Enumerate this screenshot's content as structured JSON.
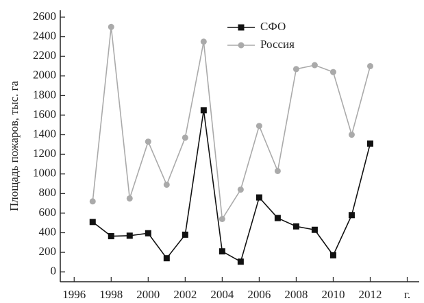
{
  "chart_data": {
    "type": "line",
    "y_label": "Площадь пожаров, тыс. га",
    "x": [
      1997,
      1998,
      1999,
      2000,
      2001,
      2002,
      2003,
      2004,
      2005,
      2006,
      2007,
      2008,
      2009,
      2010,
      2011,
      2012
    ],
    "series": [
      {
        "name": "СФО",
        "color": "#111111",
        "marker": "square",
        "values": [
          510,
          365,
          370,
          395,
          140,
          380,
          1650,
          210,
          105,
          760,
          550,
          465,
          430,
          170,
          580,
          1310
        ]
      },
      {
        "name": "Россия",
        "color": "#aaaaaa",
        "marker": "circle",
        "values": [
          720,
          2500,
          750,
          1330,
          890,
          1370,
          2350,
          540,
          840,
          1490,
          1030,
          2070,
          2110,
          2040,
          1400,
          2100
        ]
      }
    ],
    "xlim": [
      1995.25,
      2014.5
    ],
    "xticks": [
      1996,
      1998,
      2000,
      2002,
      2004,
      2006,
      2008,
      2010,
      2012,
      {
        "value": 2014,
        "label": "г."
      }
    ],
    "ylim": [
      -100,
      2670
    ],
    "yticks": [
      0,
      200,
      400,
      600,
      800,
      1000,
      1200,
      1400,
      1600,
      1800,
      2000,
      2200,
      2400,
      2600
    ],
    "legend": "top-center"
  }
}
